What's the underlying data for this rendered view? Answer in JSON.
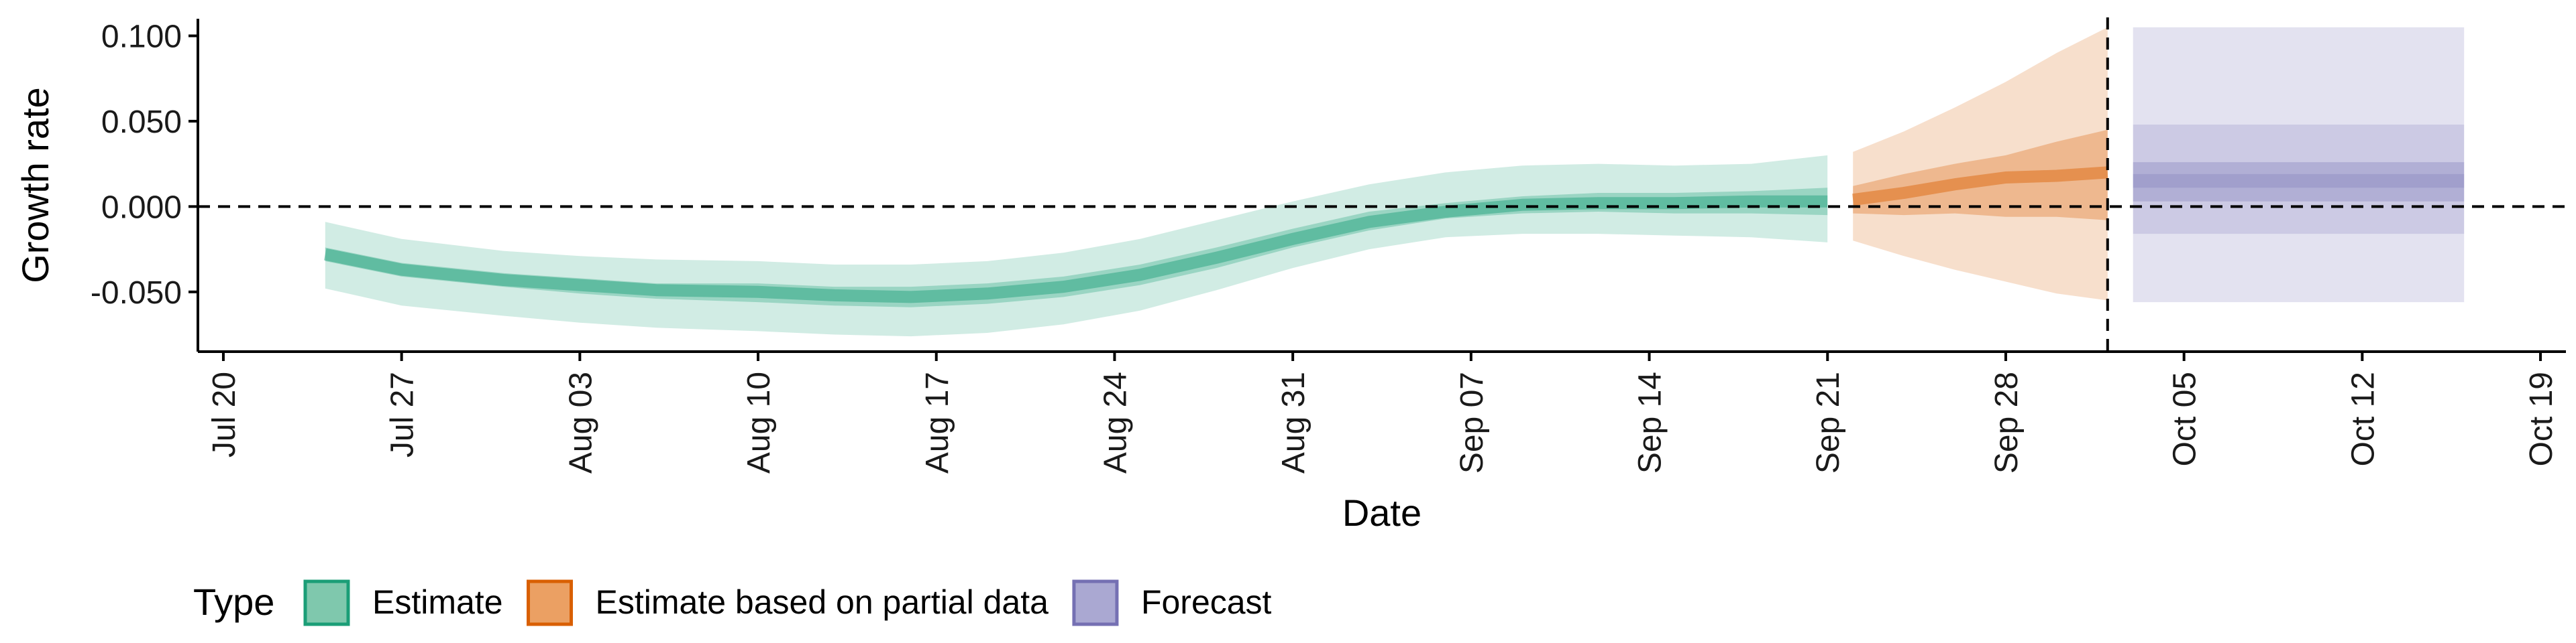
{
  "chart_data": {
    "type": "area",
    "xlabel": "Date",
    "ylabel": "Growth rate",
    "x_ticks": [
      "Jul 20",
      "Jul 27",
      "Aug 03",
      "Aug 10",
      "Aug 17",
      "Aug 24",
      "Aug 31",
      "Sep 07",
      "Sep 14",
      "Sep 21",
      "Sep 28",
      "Oct 05",
      "Oct 12",
      "Oct 19"
    ],
    "y_ticks": [
      "0.100",
      "0.050",
      "0.000",
      "-0.050"
    ],
    "ylim": [
      -0.085,
      0.11
    ],
    "xlim": [
      "2020-07-19",
      "2020-10-20"
    ],
    "reference_lines": {
      "horizontal_y": 0.0,
      "vertical_date": "2020-10-02"
    },
    "legend": {
      "title": "Type",
      "position": "bottom-left",
      "entries": [
        {
          "label": "Estimate",
          "fill": "#7fc8ad",
          "stroke": "#1b9e77"
        },
        {
          "label": "Estimate based on partial data",
          "fill": "#eba063",
          "stroke": "#d95f02"
        },
        {
          "label": "Forecast",
          "fill": "#aaa8d2",
          "stroke": "#7570b3"
        }
      ]
    },
    "series": [
      {
        "name": "Estimate",
        "color": "#1b9e77",
        "dates": [
          "2020-07-24",
          "2020-07-27",
          "2020-07-31",
          "2020-08-03",
          "2020-08-06",
          "2020-08-10",
          "2020-08-13",
          "2020-08-16",
          "2020-08-19",
          "2020-08-22",
          "2020-08-25",
          "2020-08-28",
          "2020-08-31",
          "2020-09-03",
          "2020-09-06",
          "2020-09-09",
          "2020-09-12",
          "2020-09-15",
          "2020-09-18",
          "2020-09-21"
        ],
        "median": [
          -0.028,
          -0.037,
          -0.043,
          -0.046,
          -0.049,
          -0.05,
          -0.052,
          -0.053,
          -0.051,
          -0.047,
          -0.04,
          -0.03,
          -0.019,
          -0.009,
          -0.003,
          0.001,
          0.002,
          0.002,
          0.003,
          0.003
        ],
        "lower_50": [
          -0.032,
          -0.041,
          -0.047,
          -0.051,
          -0.054,
          -0.056,
          -0.058,
          -0.059,
          -0.057,
          -0.053,
          -0.046,
          -0.036,
          -0.024,
          -0.014,
          -0.007,
          -0.004,
          -0.003,
          -0.004,
          -0.004,
          -0.005
        ],
        "upper_50": [
          -0.024,
          -0.033,
          -0.039,
          -0.042,
          -0.045,
          -0.045,
          -0.047,
          -0.047,
          -0.045,
          -0.041,
          -0.034,
          -0.024,
          -0.013,
          -0.003,
          0.002,
          0.006,
          0.008,
          0.008,
          0.009,
          0.011
        ],
        "lower_90": [
          -0.048,
          -0.058,
          -0.064,
          -0.068,
          -0.071,
          -0.073,
          -0.075,
          -0.076,
          -0.074,
          -0.069,
          -0.061,
          -0.049,
          -0.036,
          -0.025,
          -0.018,
          -0.016,
          -0.016,
          -0.017,
          -0.018,
          -0.021
        ],
        "upper_90": [
          -0.009,
          -0.019,
          -0.026,
          -0.029,
          -0.031,
          -0.032,
          -0.034,
          -0.034,
          -0.032,
          -0.027,
          -0.019,
          -0.008,
          0.003,
          0.013,
          0.02,
          0.024,
          0.025,
          0.024,
          0.025,
          0.03
        ]
      },
      {
        "name": "Estimate based on partial data",
        "color": "#d95f02",
        "dates": [
          "2020-09-22",
          "2020-09-24",
          "2020-09-26",
          "2020-09-28",
          "2020-09-30",
          "2020-10-02"
        ],
        "median": [
          0.004,
          0.008,
          0.013,
          0.017,
          0.018,
          0.02
        ],
        "lower_50": [
          -0.004,
          -0.005,
          -0.004,
          -0.006,
          -0.006,
          -0.008
        ],
        "upper_50": [
          0.012,
          0.019,
          0.025,
          0.03,
          0.038,
          0.045
        ],
        "lower_90": [
          -0.02,
          -0.029,
          -0.037,
          -0.044,
          -0.051,
          -0.055
        ],
        "upper_90": [
          0.032,
          0.044,
          0.058,
          0.073,
          0.09,
          0.105
        ]
      },
      {
        "name": "Forecast",
        "color": "#7570b3",
        "dates": [
          "2020-10-03",
          "2020-10-16"
        ],
        "median": [
          0.015,
          0.015
        ],
        "lower_50": [
          0.003,
          0.003
        ],
        "upper_50": [
          0.026,
          0.026
        ],
        "lower_90": [
          -0.016,
          -0.016
        ],
        "upper_90": [
          0.048,
          0.048
        ],
        "lower_95": [
          -0.056,
          -0.056
        ],
        "upper_95": [
          0.105,
          0.105
        ]
      }
    ]
  }
}
